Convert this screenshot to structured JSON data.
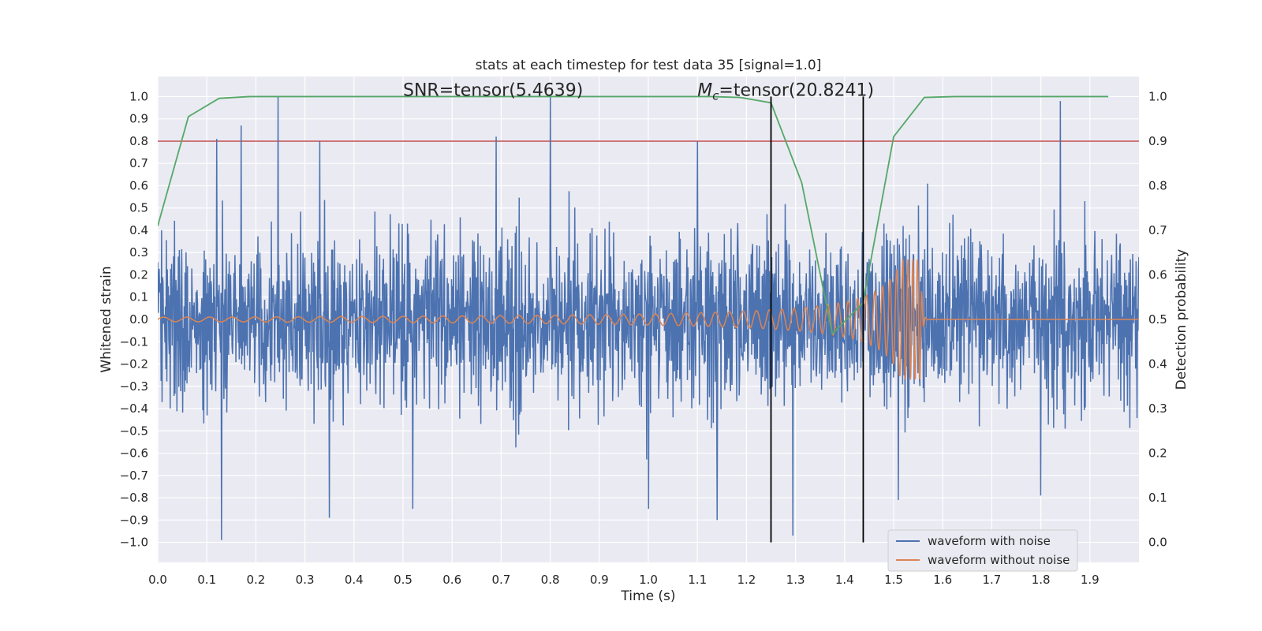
{
  "chart_data": {
    "type": "line",
    "title": "stats at each timestep for test data 35 [signal=1.0]",
    "xlabel": "Time (s)",
    "ylabel": "Whitened strain",
    "y2label": "Detection probability",
    "xlim": [
      0.0,
      2.0
    ],
    "ylim": [
      -1.09,
      1.09
    ],
    "y2lim": [
      -0.045,
      1.045
    ],
    "xticks": [
      "0.0",
      "0.1",
      "0.2",
      "0.3",
      "0.4",
      "0.5",
      "0.6",
      "0.7",
      "0.8",
      "0.9",
      "1.0",
      "1.1",
      "1.2",
      "1.3",
      "1.4",
      "1.5",
      "1.6",
      "1.7",
      "1.8",
      "1.9"
    ],
    "yticks": [
      "1.0",
      "0.9",
      "0.8",
      "0.7",
      "0.6",
      "0.5",
      "0.4",
      "0.3",
      "0.2",
      "0.1",
      "0.0",
      "−0.1",
      "−0.2",
      "−0.3",
      "−0.4",
      "−0.5",
      "−0.6",
      "−0.7",
      "−0.8",
      "−0.9",
      "−1.0"
    ],
    "y2ticks": [
      "1.0",
      "0.9",
      "0.8",
      "0.7",
      "0.6",
      "0.5",
      "0.4",
      "0.3",
      "0.2",
      "0.1",
      "0.0"
    ],
    "grid": true,
    "legend_position": "lower-right",
    "background": "#eaeaf2",
    "annotations": [
      {
        "text": "SNR=tensor(5.4639)",
        "x": 0.5,
        "y": 1.0
      },
      {
        "text_italic": "M",
        "text_sub": "c",
        "text": "=tensor(20.8241)",
        "x": 1.1,
        "y": 1.0
      }
    ],
    "vlines": [
      {
        "x": 1.25,
        "y_from": -1.0,
        "y_to": 1.0,
        "color": "#000000"
      },
      {
        "x": 1.438,
        "y_from": -1.0,
        "y_to": 1.0,
        "color": "#000000"
      }
    ],
    "hlines": [
      {
        "y2": 0.9,
        "color": "#c44e52"
      },
      {
        "y2": 0.5,
        "color": "#ffffff"
      }
    ],
    "noise_series": {
      "name": "waveform with noise",
      "color": "#4c72b0",
      "x_range": [
        0.0,
        2.0
      ],
      "samples": 2048,
      "amplitude_range": [
        -0.99,
        1.0
      ],
      "spikes": [
        {
          "x": 0.245,
          "y": 1.0
        },
        {
          "x": 0.8,
          "y": 1.0
        },
        {
          "x": 0.13,
          "y": -0.99
        },
        {
          "x": 1.84,
          "y": 0.98
        },
        {
          "x": 1.295,
          "y": -0.97
        },
        {
          "x": 0.17,
          "y": 0.87
        },
        {
          "x": 0.12,
          "y": 0.81
        },
        {
          "x": 0.33,
          "y": 0.8
        },
        {
          "x": 0.69,
          "y": 0.82
        },
        {
          "x": 1.1,
          "y": 0.8
        },
        {
          "x": 0.35,
          "y": -0.89
        },
        {
          "x": 1.0,
          "y": -0.85
        },
        {
          "x": 1.14,
          "y": -0.9
        },
        {
          "x": 0.52,
          "y": -0.85
        },
        {
          "x": 1.51,
          "y": -0.81
        },
        {
          "x": 1.8,
          "y": -0.79
        }
      ]
    },
    "clean_series": {
      "name": "waveform without noise",
      "color": "#dd8452",
      "x_start": 0.0,
      "x_merger": 1.555,
      "freq_start": 21,
      "freq_end": 105,
      "amp_start": 0.01,
      "amp_end": 0.27
    },
    "prob_series": {
      "name": "",
      "color": "#55a868",
      "x": [
        0.0,
        0.0625,
        0.125,
        0.1875,
        0.25,
        0.3125,
        0.375,
        0.4375,
        0.5,
        0.5625,
        0.625,
        0.6875,
        0.75,
        0.8125,
        0.875,
        0.9375,
        1.0,
        1.0625,
        1.125,
        1.1875,
        1.25,
        1.3125,
        1.375,
        1.4375,
        1.5,
        1.5625,
        1.625,
        1.6875,
        1.75,
        1.8125,
        1.875,
        1.9375
      ],
      "y": [
        0.71,
        0.955,
        0.996,
        1.0,
        1.0,
        1.0,
        1.0,
        1.0,
        1.0,
        1.0,
        1.0,
        1.0,
        1.0,
        1.0,
        1.0,
        1.0,
        1.0,
        1.0,
        1.0,
        0.998,
        0.986,
        0.807,
        0.468,
        0.537,
        0.91,
        0.998,
        1.0,
        1.0,
        1.0,
        1.0,
        1.0,
        1.0
      ]
    },
    "legend": [
      {
        "label": "waveform with noise",
        "color": "#4c72b0"
      },
      {
        "label": "waveform without noise",
        "color": "#dd8452"
      }
    ]
  }
}
